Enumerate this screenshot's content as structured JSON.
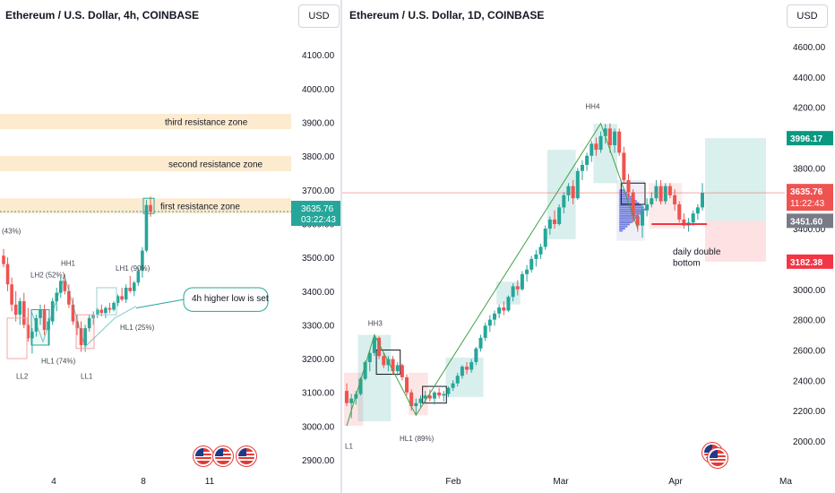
{
  "left_chart": {
    "title": "Ethereum / U.S. Dollar, 4h, COINBASE",
    "currency_button": "USD",
    "y_ticks": [
      "4100.00",
      "4000.00",
      "3900.00",
      "3800.00",
      "3700.00",
      "3600.00",
      "3500.00",
      "3400.00",
      "3300.00",
      "3200.00",
      "3100.00",
      "3000.00",
      "2900.00"
    ],
    "x_ticks": [
      "4",
      "8",
      "11"
    ],
    "price_label": "3635.76",
    "countdown": "03:22:43",
    "zones": [
      "third resistance zone",
      "second resistance zone",
      "first resistance zone"
    ],
    "annotations": [
      "(43%)",
      "HH1",
      "LH2 (52%)",
      "LH1 (90%)",
      "HL1 (74%)",
      "HL1 (25%)",
      "LL2",
      "LL1"
    ],
    "callout": "4h higher low is set",
    "colors": {
      "up": "#26a69a",
      "down": "#ef5350",
      "zone": "#fdebd0",
      "price_tag": "#26a69a"
    }
  },
  "right_chart": {
    "title": "Ethereum / U.S. Dollar, 1D, COINBASE",
    "currency_button": "USD",
    "y_ticks": [
      "4600.00",
      "4400.00",
      "4200.00",
      "3800.00",
      "3600.00",
      "3400.00",
      "3000.00",
      "2800.00",
      "2600.00",
      "2400.00",
      "2200.00",
      "2000.00"
    ],
    "x_ticks": [
      "Feb",
      "Mar",
      "Apr",
      "Ma"
    ],
    "price_labels": {
      "target": "3996.17",
      "current": "3635.76",
      "countdown": "11:22:43",
      "entry": "3451.60",
      "stop": "3182.38"
    },
    "annotations": [
      "HH4",
      "HH3",
      "HL1 (89%)",
      "L1"
    ],
    "callout": "daily double bottom",
    "colors": {
      "target": "#089981",
      "current": "#ef5350",
      "entry": "#787b86",
      "stop": "#f23645",
      "up": "#26a69a",
      "down": "#ef5350"
    }
  },
  "chart_data": [
    {
      "type": "candlestick",
      "title": "Ethereum / U.S. Dollar, 4h, COINBASE",
      "xlabel": "",
      "ylabel": "",
      "x_ticks": [
        "4",
        "8",
        "11"
      ],
      "ylim": [
        2880,
        4180
      ],
      "last_price": 3635.76,
      "resistance_zones": [
        {
          "name": "third resistance zone",
          "low": 3880,
          "high": 3925
        },
        {
          "name": "second resistance zone",
          "low": 3755,
          "high": 3800
        },
        {
          "name": "first resistance zone",
          "low": 3630,
          "high": 3675
        }
      ],
      "candles": [
        {
          "o": 3505,
          "h": 3525,
          "l": 3470,
          "c": 3480
        },
        {
          "o": 3480,
          "h": 3500,
          "l": 3400,
          "c": 3420
        },
        {
          "o": 3420,
          "h": 3440,
          "l": 3340,
          "c": 3360
        },
        {
          "o": 3360,
          "h": 3400,
          "l": 3310,
          "c": 3330
        },
        {
          "o": 3330,
          "h": 3380,
          "l": 3300,
          "c": 3370
        },
        {
          "o": 3370,
          "h": 3395,
          "l": 3290,
          "c": 3300
        },
        {
          "o": 3300,
          "h": 3350,
          "l": 3250,
          "c": 3260
        },
        {
          "o": 3260,
          "h": 3290,
          "l": 3215,
          "c": 3280
        },
        {
          "o": 3280,
          "h": 3330,
          "l": 3265,
          "c": 3320
        },
        {
          "o": 3320,
          "h": 3360,
          "l": 3300,
          "c": 3345
        },
        {
          "o": 3345,
          "h": 3360,
          "l": 3270,
          "c": 3285
        },
        {
          "o": 3285,
          "h": 3320,
          "l": 3240,
          "c": 3310
        },
        {
          "o": 3310,
          "h": 3380,
          "l": 3300,
          "c": 3370
        },
        {
          "o": 3370,
          "h": 3410,
          "l": 3340,
          "c": 3395
        },
        {
          "o": 3395,
          "h": 3440,
          "l": 3380,
          "c": 3430
        },
        {
          "o": 3430,
          "h": 3450,
          "l": 3390,
          "c": 3400
        },
        {
          "o": 3400,
          "h": 3420,
          "l": 3350,
          "c": 3360
        },
        {
          "o": 3360,
          "h": 3380,
          "l": 3300,
          "c": 3310
        },
        {
          "o": 3310,
          "h": 3330,
          "l": 3270,
          "c": 3290
        },
        {
          "o": 3290,
          "h": 3310,
          "l": 3220,
          "c": 3240
        },
        {
          "o": 3240,
          "h": 3300,
          "l": 3220,
          "c": 3290
        },
        {
          "o": 3290,
          "h": 3330,
          "l": 3280,
          "c": 3320
        },
        {
          "o": 3320,
          "h": 3340,
          "l": 3300,
          "c": 3330
        },
        {
          "o": 3330,
          "h": 3350,
          "l": 3320,
          "c": 3345
        },
        {
          "o": 3345,
          "h": 3360,
          "l": 3325,
          "c": 3335
        },
        {
          "o": 3335,
          "h": 3355,
          "l": 3320,
          "c": 3350
        },
        {
          "o": 3350,
          "h": 3365,
          "l": 3335,
          "c": 3345
        },
        {
          "o": 3345,
          "h": 3370,
          "l": 3340,
          "c": 3365
        },
        {
          "o": 3365,
          "h": 3390,
          "l": 3355,
          "c": 3385
        },
        {
          "o": 3385,
          "h": 3410,
          "l": 3370,
          "c": 3375
        },
        {
          "o": 3375,
          "h": 3420,
          "l": 3365,
          "c": 3410
        },
        {
          "o": 3410,
          "h": 3445,
          "l": 3395,
          "c": 3400
        },
        {
          "o": 3400,
          "h": 3430,
          "l": 3385,
          "c": 3425
        },
        {
          "o": 3425,
          "h": 3470,
          "l": 3415,
          "c": 3460
        },
        {
          "o": 3460,
          "h": 3530,
          "l": 3440,
          "c": 3520
        },
        {
          "o": 3520,
          "h": 3670,
          "l": 3515,
          "c": 3655
        },
        {
          "o": 3655,
          "h": 3680,
          "l": 3620,
          "c": 3635.76
        }
      ]
    },
    {
      "type": "candlestick",
      "title": "Ethereum / U.S. Dollar, 1D, COINBASE",
      "xlabel": "",
      "ylabel": "",
      "x_ticks": [
        "Feb",
        "Mar",
        "Apr",
        "Ma"
      ],
      "ylim": [
        1900,
        4700
      ],
      "last_price": 3635.76,
      "trade_setup": {
        "target": 3996.17,
        "entry": 3451.6,
        "stop": 3182.38
      },
      "candles": [
        {
          "o": 2330,
          "h": 2380,
          "l": 2230,
          "c": 2250
        },
        {
          "o": 2250,
          "h": 2310,
          "l": 2150,
          "c": 2280
        },
        {
          "o": 2280,
          "h": 2330,
          "l": 2240,
          "c": 2310
        },
        {
          "o": 2310,
          "h": 2420,
          "l": 2300,
          "c": 2410
        },
        {
          "o": 2410,
          "h": 2530,
          "l": 2400,
          "c": 2520
        },
        {
          "o": 2520,
          "h": 2600,
          "l": 2460,
          "c": 2580
        },
        {
          "o": 2580,
          "h": 2700,
          "l": 2560,
          "c": 2680
        },
        {
          "o": 2680,
          "h": 2690,
          "l": 2540,
          "c": 2560
        },
        {
          "o": 2560,
          "h": 2580,
          "l": 2480,
          "c": 2500
        },
        {
          "o": 2500,
          "h": 2560,
          "l": 2460,
          "c": 2540
        },
        {
          "o": 2540,
          "h": 2560,
          "l": 2440,
          "c": 2460
        },
        {
          "o": 2460,
          "h": 2520,
          "l": 2430,
          "c": 2500
        },
        {
          "o": 2500,
          "h": 2510,
          "l": 2400,
          "c": 2420
        },
        {
          "o": 2420,
          "h": 2440,
          "l": 2300,
          "c": 2320
        },
        {
          "o": 2320,
          "h": 2340,
          "l": 2200,
          "c": 2230
        },
        {
          "o": 2230,
          "h": 2280,
          "l": 2170,
          "c": 2250
        },
        {
          "o": 2250,
          "h": 2300,
          "l": 2220,
          "c": 2280
        },
        {
          "o": 2280,
          "h": 2330,
          "l": 2250,
          "c": 2300
        },
        {
          "o": 2300,
          "h": 2340,
          "l": 2260,
          "c": 2280
        },
        {
          "o": 2280,
          "h": 2330,
          "l": 2240,
          "c": 2320
        },
        {
          "o": 2320,
          "h": 2350,
          "l": 2280,
          "c": 2300
        },
        {
          "o": 2300,
          "h": 2330,
          "l": 2260,
          "c": 2310
        },
        {
          "o": 2310,
          "h": 2360,
          "l": 2290,
          "c": 2350
        },
        {
          "o": 2350,
          "h": 2400,
          "l": 2330,
          "c": 2380
        },
        {
          "o": 2380,
          "h": 2450,
          "l": 2360,
          "c": 2430
        },
        {
          "o": 2430,
          "h": 2500,
          "l": 2410,
          "c": 2490
        },
        {
          "o": 2490,
          "h": 2520,
          "l": 2440,
          "c": 2470
        },
        {
          "o": 2470,
          "h": 2540,
          "l": 2450,
          "c": 2520
        },
        {
          "o": 2520,
          "h": 2620,
          "l": 2500,
          "c": 2610
        },
        {
          "o": 2610,
          "h": 2700,
          "l": 2590,
          "c": 2680
        },
        {
          "o": 2680,
          "h": 2780,
          "l": 2660,
          "c": 2760
        },
        {
          "o": 2760,
          "h": 2830,
          "l": 2720,
          "c": 2800
        },
        {
          "o": 2800,
          "h": 2860,
          "l": 2760,
          "c": 2840
        },
        {
          "o": 2840,
          "h": 2900,
          "l": 2810,
          "c": 2880
        },
        {
          "o": 2880,
          "h": 2920,
          "l": 2830,
          "c": 2860
        },
        {
          "o": 2860,
          "h": 2960,
          "l": 2850,
          "c": 2950
        },
        {
          "o": 2950,
          "h": 3040,
          "l": 2920,
          "c": 3020
        },
        {
          "o": 3020,
          "h": 3060,
          "l": 2960,
          "c": 3000
        },
        {
          "o": 3000,
          "h": 3120,
          "l": 2990,
          "c": 3100
        },
        {
          "o": 3100,
          "h": 3160,
          "l": 3050,
          "c": 3130
        },
        {
          "o": 3130,
          "h": 3220,
          "l": 3110,
          "c": 3200
        },
        {
          "o": 3200,
          "h": 3260,
          "l": 3150,
          "c": 3230
        },
        {
          "o": 3230,
          "h": 3300,
          "l": 3200,
          "c": 3280
        },
        {
          "o": 3280,
          "h": 3420,
          "l": 3260,
          "c": 3400
        },
        {
          "o": 3400,
          "h": 3480,
          "l": 3360,
          "c": 3460
        },
        {
          "o": 3460,
          "h": 3520,
          "l": 3400,
          "c": 3430
        },
        {
          "o": 3430,
          "h": 3560,
          "l": 3420,
          "c": 3540
        },
        {
          "o": 3540,
          "h": 3640,
          "l": 3500,
          "c": 3620
        },
        {
          "o": 3620,
          "h": 3700,
          "l": 3580,
          "c": 3680
        },
        {
          "o": 3680,
          "h": 3720,
          "l": 3560,
          "c": 3600
        },
        {
          "o": 3600,
          "h": 3800,
          "l": 3590,
          "c": 3780
        },
        {
          "o": 3780,
          "h": 3850,
          "l": 3720,
          "c": 3820
        },
        {
          "o": 3820,
          "h": 3900,
          "l": 3780,
          "c": 3880
        },
        {
          "o": 3880,
          "h": 3980,
          "l": 3840,
          "c": 3960
        },
        {
          "o": 3960,
          "h": 4000,
          "l": 3880,
          "c": 3920
        },
        {
          "o": 3920,
          "h": 4040,
          "l": 3900,
          "c": 4010
        },
        {
          "o": 4010,
          "h": 4090,
          "l": 3960,
          "c": 4060
        },
        {
          "o": 4060,
          "h": 4093,
          "l": 3900,
          "c": 3950
        },
        {
          "o": 3950,
          "h": 4060,
          "l": 3900,
          "c": 4040
        },
        {
          "o": 4040,
          "h": 4060,
          "l": 3880,
          "c": 3900
        },
        {
          "o": 3900,
          "h": 3940,
          "l": 3700,
          "c": 3720
        },
        {
          "o": 3720,
          "h": 3760,
          "l": 3600,
          "c": 3640
        },
        {
          "o": 3640,
          "h": 3660,
          "l": 3440,
          "c": 3480
        },
        {
          "o": 3480,
          "h": 3520,
          "l": 3380,
          "c": 3420
        },
        {
          "o": 3420,
          "h": 3560,
          "l": 3340,
          "c": 3520
        },
        {
          "o": 3520,
          "h": 3600,
          "l": 3480,
          "c": 3560
        },
        {
          "o": 3560,
          "h": 3640,
          "l": 3540,
          "c": 3600
        },
        {
          "o": 3600,
          "h": 3720,
          "l": 3580,
          "c": 3680
        },
        {
          "o": 3680,
          "h": 3720,
          "l": 3560,
          "c": 3580
        },
        {
          "o": 3580,
          "h": 3700,
          "l": 3560,
          "c": 3680
        },
        {
          "o": 3680,
          "h": 3700,
          "l": 3600,
          "c": 3620
        },
        {
          "o": 3620,
          "h": 3660,
          "l": 3520,
          "c": 3560
        },
        {
          "o": 3560,
          "h": 3580,
          "l": 3440,
          "c": 3460
        },
        {
          "o": 3460,
          "h": 3500,
          "l": 3400,
          "c": 3420
        },
        {
          "o": 3420,
          "h": 3470,
          "l": 3380,
          "c": 3440
        },
        {
          "o": 3440,
          "h": 3520,
          "l": 3420,
          "c": 3500
        },
        {
          "o": 3500,
          "h": 3560,
          "l": 3460,
          "c": 3540
        },
        {
          "o": 3540,
          "h": 3700,
          "l": 3520,
          "c": 3635.76
        }
      ]
    }
  ]
}
